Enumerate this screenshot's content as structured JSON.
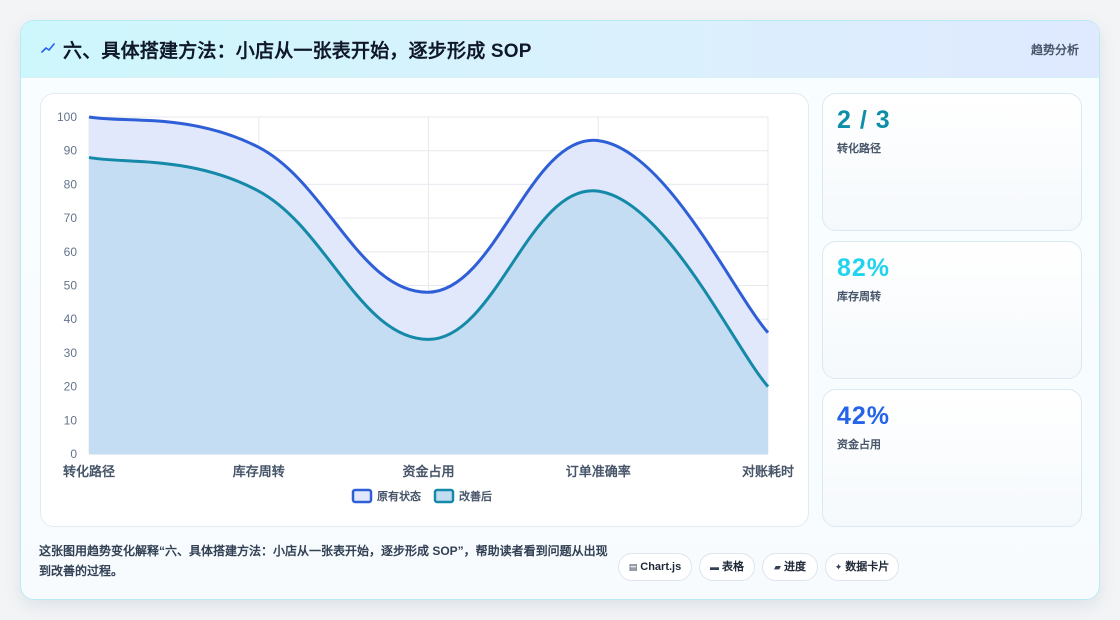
{
  "header": {
    "title": "六、具体搭建方法：小店从一张表开始，逐步形成 SOP",
    "tag": "趋势分析"
  },
  "stats": [
    {
      "value": "2 / 3",
      "label": "转化路径",
      "color": "#0e8fa8"
    },
    {
      "value": "82%",
      "label": "库存周转",
      "color": "#22d3ee"
    },
    {
      "value": "42%",
      "label": "资金占用",
      "color": "#2563eb"
    }
  ],
  "footer": {
    "description": "这张图用趋势变化解释“六、具体搭建方法：小店从一张表开始，逐步形成 SOP”，帮助读者看到问题从出现到改善的过程。"
  },
  "pills": [
    {
      "icon": "chart-icon",
      "glyph": "▤",
      "label": "Chart.js"
    },
    {
      "icon": "table-icon",
      "glyph": "▬",
      "label": "表格"
    },
    {
      "icon": "progress-icon",
      "glyph": "▰",
      "label": "进度"
    },
    {
      "icon": "sparkle-icon",
      "glyph": "✦",
      "label": "数据卡片"
    }
  ],
  "chart_data": {
    "type": "area",
    "categories": [
      "转化路径",
      "库存周转",
      "资金占用",
      "订单准确率",
      "对账耗时"
    ],
    "ylim": [
      0,
      100
    ],
    "yticks": [
      0,
      10,
      20,
      30,
      40,
      50,
      60,
      70,
      80,
      90,
      100
    ],
    "grid": true,
    "legend": "bottom",
    "series": [
      {
        "name": "原有状态",
        "values": [
          100,
          91,
          48,
          93,
          36
        ],
        "color": "#2f5fd6",
        "fill": "#e1e8fb"
      },
      {
        "name": "改善后",
        "values": [
          88,
          78,
          34,
          78,
          20
        ],
        "color": "#1589a8",
        "fill": "#c3dcf1"
      }
    ]
  }
}
